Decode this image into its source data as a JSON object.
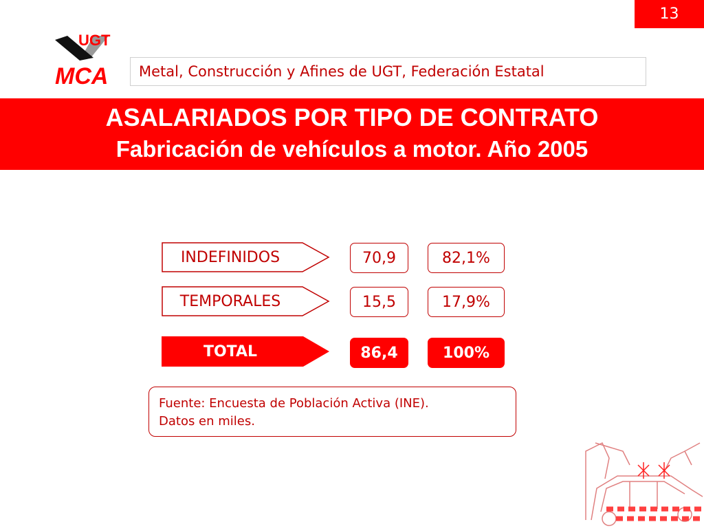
{
  "slide_number": "13",
  "logo": {
    "top_text": "UGT",
    "bottom_text": "MCA"
  },
  "header": {
    "organization": "Metal, Construcción y Afines de UGT, Federación Estatal"
  },
  "title": {
    "line1": "ASALARIADOS POR TIPO DE CONTRATO",
    "line2": "Fabricación de vehículos a motor. Año 2005"
  },
  "rows": [
    {
      "label": "INDEFINIDOS",
      "value": "70,9",
      "percent": "82,1%"
    },
    {
      "label": "TEMPORALES",
      "value": "15,5",
      "percent": "17,9%"
    },
    {
      "label": "TOTAL",
      "value": "86,4",
      "percent": "100%"
    }
  ],
  "source": {
    "line1": "Fuente: Encuesta de Población Activa (INE).",
    "line2": "Datos en miles."
  },
  "colors": {
    "accent": "#ff0000",
    "accent_dark": "#c00000"
  },
  "icons": {
    "logo": "ugt-mca-logo-icon",
    "decoration": "car-factory-robots-icon"
  }
}
